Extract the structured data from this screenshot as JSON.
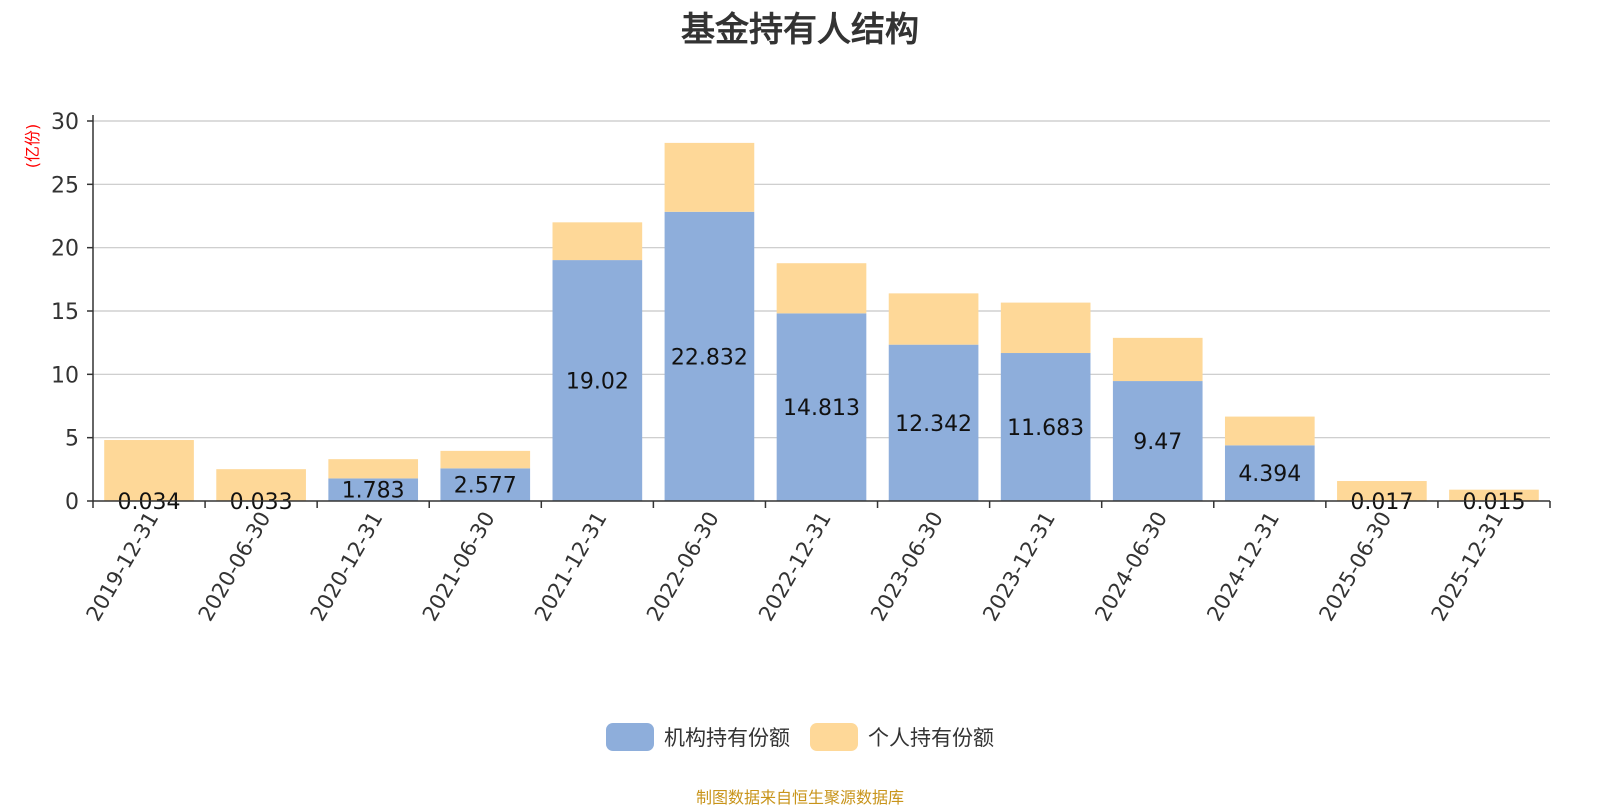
{
  "chart_data": {
    "type": "bar",
    "stacked": true,
    "title": "基金持有人结构",
    "ylabel": "(亿份)",
    "xlabel": "",
    "ylim": [
      0,
      30
    ],
    "yticks": [
      0,
      5,
      10,
      15,
      20,
      25,
      30
    ],
    "grid": true,
    "legend_position": "bottom",
    "categories": [
      "2019-12-31",
      "2020-06-30",
      "2020-12-31",
      "2021-06-30",
      "2021-12-31",
      "2022-06-30",
      "2022-12-31",
      "2023-06-30",
      "2023-12-31",
      "2024-06-30",
      "2024-12-31",
      "2025-06-30",
      "2025-12-31"
    ],
    "series": [
      {
        "name": "机构持有份额",
        "color": "#8eaedb",
        "values": [
          0.034,
          0.033,
          1.783,
          2.577,
          19.02,
          22.832,
          14.813,
          12.342,
          11.683,
          9.47,
          4.394,
          0.017,
          0.015
        ],
        "labels": [
          "0.034",
          "0.033",
          "1.783",
          "2.577",
          "19.02",
          "22.832",
          "14.813",
          "12.342",
          "11.683",
          "9.47",
          "4.394",
          "0.017",
          "0.015"
        ]
      },
      {
        "name": "个人持有份额",
        "color": "#fed898",
        "values": [
          4.78,
          2.48,
          1.52,
          1.38,
          2.98,
          5.44,
          3.96,
          4.05,
          3.98,
          3.41,
          2.27,
          1.56,
          0.88
        ]
      }
    ]
  },
  "footer": {
    "source": "制图数据来自恒生聚源数据库"
  }
}
